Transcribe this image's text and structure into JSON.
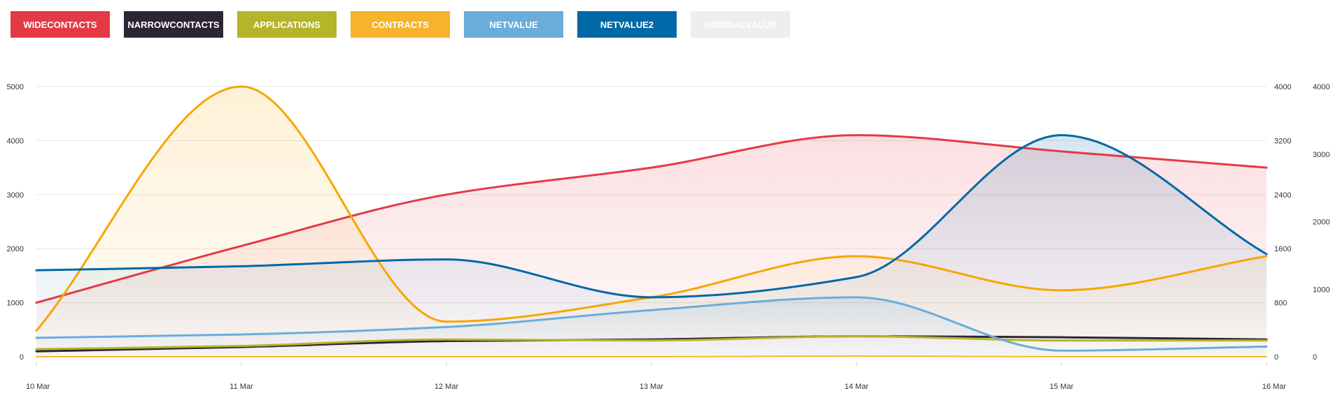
{
  "chart_data": {
    "type": "area",
    "categories": [
      "10 Mar",
      "11 Mar",
      "12 Mar",
      "13 Mar",
      "14 Mar",
      "15 Mar",
      "16 Mar"
    ],
    "y_axes": [
      {
        "id": "left",
        "ticks": [
          "0",
          "1000",
          "2000",
          "3000",
          "4000",
          "5000"
        ],
        "range": [
          0,
          5000
        ]
      },
      {
        "id": "right1",
        "ticks": [
          "0",
          "800",
          "1600",
          "2400",
          "3200",
          "4000"
        ],
        "range": [
          0,
          4000
        ]
      },
      {
        "id": "right2",
        "ticks": [
          "0",
          "1000",
          "2000",
          "3000",
          "4000"
        ],
        "range": [
          0,
          4000
        ]
      }
    ],
    "grid": true,
    "legend_position": "top-left",
    "series": [
      {
        "name": "WIDECONTACTS",
        "color": "#e63946",
        "axis": "left",
        "values": [
          1000,
          2050,
          3000,
          3500,
          4100,
          3800,
          3500
        ],
        "fill": true
      },
      {
        "name": "NARROWCONTACTS",
        "color": "#2d2535",
        "axis": "left",
        "values": [
          100,
          180,
          290,
          320,
          380,
          360,
          320
        ],
        "fill": false
      },
      {
        "name": "APPLICATIONS",
        "color": "#b5b52a",
        "axis": "left",
        "values": [
          140,
          200,
          320,
          300,
          380,
          300,
          300
        ],
        "fill": false
      },
      {
        "name": "CONTRACTS",
        "color": "#f7a600",
        "axis": "left",
        "values": [
          480,
          5000,
          650,
          1100,
          1860,
          1230,
          1860
        ],
        "fill": true
      },
      {
        "name": "NETVALUE",
        "color": "#6aaddb",
        "axis": "right1",
        "values": [
          280,
          330,
          440,
          690,
          880,
          90,
          150
        ],
        "fill": true
      },
      {
        "name": "NETVALUE2",
        "color": "#0068a6",
        "axis": "right2",
        "values": [
          1280,
          1340,
          1440,
          880,
          1180,
          3280,
          1520
        ],
        "fill": true
      },
      {
        "name": "NOMINALVALUE",
        "color": "#f5b82e",
        "axis": "right2",
        "values": [
          0,
          0,
          0,
          0,
          10,
          0,
          0
        ],
        "fill": false,
        "hidden": true
      }
    ]
  },
  "legend": {
    "items": [
      {
        "label": "WIDECONTACTS",
        "bg": "#e63946",
        "fg": "#ffffff"
      },
      {
        "label": "NARROWCONTACTS",
        "bg": "#2d2535",
        "fg": "#ffffff"
      },
      {
        "label": "APPLICATIONS",
        "bg": "#b5b52a",
        "fg": "#ffffff"
      },
      {
        "label": "CONTRACTS",
        "bg": "#f7b32b",
        "fg": "#ffffff"
      },
      {
        "label": "NETVALUE",
        "bg": "#6aaddb",
        "fg": "#ffffff"
      },
      {
        "label": "NETVALUE2",
        "bg": "#0068a6",
        "fg": "#ffffff"
      },
      {
        "label": "NOMINALVALUE",
        "bg": "#eeeeee",
        "fg": "#ffffff"
      }
    ]
  }
}
